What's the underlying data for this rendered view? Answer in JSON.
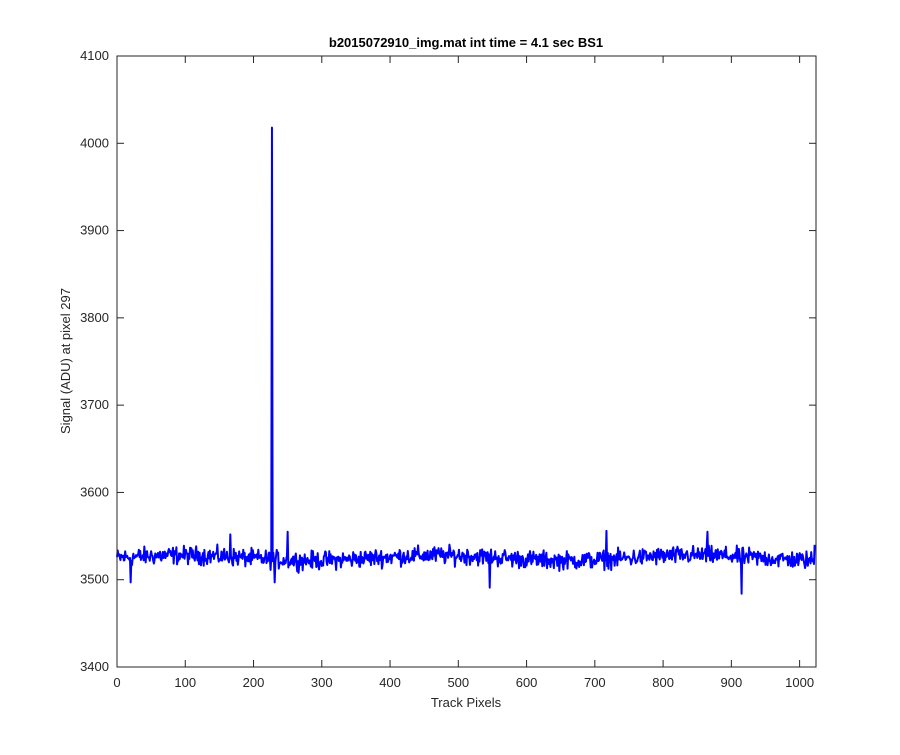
{
  "chart_data": {
    "type": "line",
    "title": "b2015072910_img.mat int time = 4.1 sec   BS1",
    "xlabel": "Track Pixels",
    "ylabel": "Signal (ADU) at pixel 297",
    "xlim": [
      0,
      1024
    ],
    "ylim": [
      3400,
      4100
    ],
    "xticks": [
      0,
      100,
      200,
      300,
      400,
      500,
      600,
      700,
      800,
      900,
      1000
    ],
    "yticks": [
      3400,
      3500,
      3600,
      3700,
      3800,
      3900,
      4000,
      4100
    ],
    "grid": false,
    "legend": "none",
    "series": [
      {
        "color": "#0000ff",
        "baseline_mean": 3525,
        "noise_amplitude": 15,
        "spike": {
          "x": 227,
          "y": 4018
        },
        "notable_points": [
          {
            "x": 20,
            "y": 3497
          },
          {
            "x": 166,
            "y": 3552
          },
          {
            "x": 231,
            "y": 3497
          },
          {
            "x": 250,
            "y": 3555
          },
          {
            "x": 546,
            "y": 3491
          },
          {
            "x": 717,
            "y": 3556
          },
          {
            "x": 865,
            "y": 3555
          },
          {
            "x": 915,
            "y": 3484
          },
          {
            "x": 1022,
            "y": 3540
          }
        ]
      }
    ]
  },
  "colors": {
    "line": "#0000ff",
    "axes": "#262626",
    "background": "#ffffff"
  }
}
